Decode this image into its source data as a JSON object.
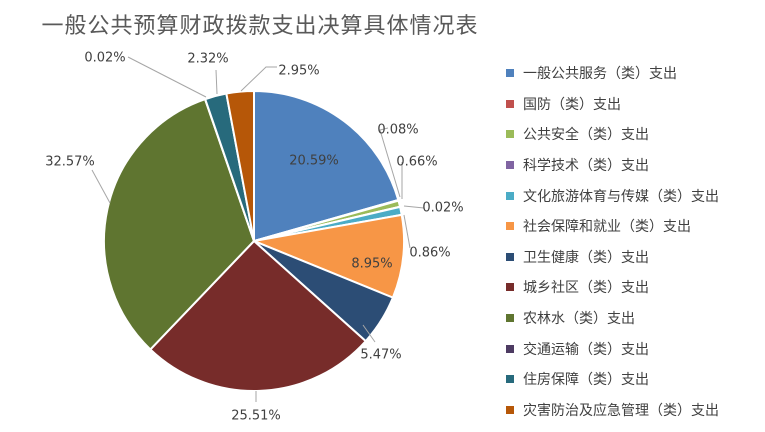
{
  "chart_data": {
    "type": "pie",
    "title": "一般公共预算财政拨款支出决算具体情况表",
    "legend_position": "right",
    "slices": [
      {
        "label": "一般公共服务（类）支出",
        "value": 20.59,
        "value_label": "20.59%",
        "color": "#4F81BD"
      },
      {
        "label": "国防（类）支出",
        "value": 0.08,
        "value_label": "0.08%",
        "color": "#C0504D"
      },
      {
        "label": "公共安全（类）支出",
        "value": 0.66,
        "value_label": "0.66%",
        "color": "#9BBB59"
      },
      {
        "label": "科学技术（类）支出",
        "value": 0.02,
        "value_label": "0.02%",
        "color": "#8064A2"
      },
      {
        "label": "文化旅游体育与传媒（类）支出",
        "value": 0.86,
        "value_label": "0.86%",
        "color": "#4BACC6"
      },
      {
        "label": "社会保障和就业（类）支出",
        "value": 8.95,
        "value_label": "8.95%",
        "color": "#F79646"
      },
      {
        "label": "卫生健康（类）支出",
        "value": 5.47,
        "value_label": "5.47%",
        "color": "#2C4D75"
      },
      {
        "label": "城乡社区（类）支出",
        "value": 25.51,
        "value_label": "25.51%",
        "color": "#772C2A"
      },
      {
        "label": "农林水（类）支出",
        "value": 32.57,
        "value_label": "32.57%",
        "color": "#5F7530"
      },
      {
        "label": "交通运输（类）支出",
        "value": 0.02,
        "value_label": "0.02%",
        "color": "#4D3B62"
      },
      {
        "label": "住房保障（类）支出",
        "value": 2.32,
        "value_label": "2.32%",
        "color": "#276A7C"
      },
      {
        "label": "灾害防治及应急管理（类）支出",
        "value": 2.95,
        "value_label": "2.95%",
        "color": "#B65708"
      }
    ]
  }
}
